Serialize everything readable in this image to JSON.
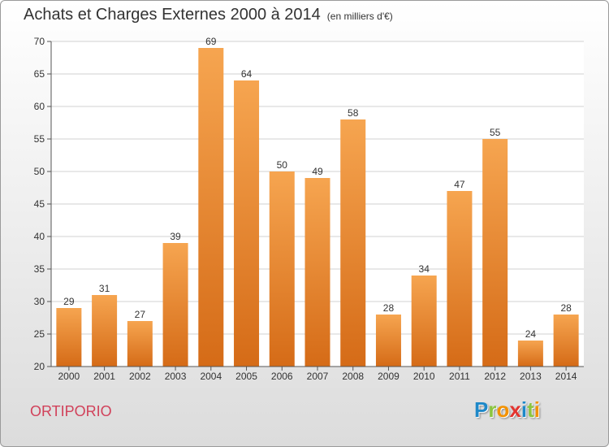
{
  "title": "Achats et Charges Externes 2000 à 2014",
  "subtitle": "(en milliers d'€)",
  "town": "ORTIPORIO",
  "logo": {
    "text": "Proxiti",
    "letters": [
      {
        "ch": "P",
        "color": "#1e88c8"
      },
      {
        "ch": "r",
        "color": "#8bc540"
      },
      {
        "ch": "o",
        "color": "#f39200"
      },
      {
        "ch": "x",
        "color": "#e3342f"
      },
      {
        "ch": "i",
        "color": "#1e88c8"
      },
      {
        "ch": "t",
        "color": "#8bc540"
      },
      {
        "ch": "i",
        "color": "#f39200"
      }
    ]
  },
  "colors": {
    "bar_top": "#f6a550",
    "bar_bottom": "#d56b17",
    "grid": "#d0d0d0",
    "axis": "#555555"
  },
  "chart_data": {
    "type": "bar",
    "categories": [
      "2000",
      "2001",
      "2002",
      "2003",
      "2004",
      "2005",
      "2006",
      "2007",
      "2008",
      "2009",
      "2010",
      "2011",
      "2012",
      "2013",
      "2014"
    ],
    "values": [
      29,
      31,
      27,
      39,
      69,
      64,
      50,
      49,
      58,
      28,
      34,
      47,
      55,
      24,
      28
    ],
    "yticks": [
      20,
      25,
      30,
      35,
      40,
      45,
      50,
      55,
      60,
      65,
      70
    ],
    "ylim": [
      20,
      70
    ],
    "grid": true
  }
}
